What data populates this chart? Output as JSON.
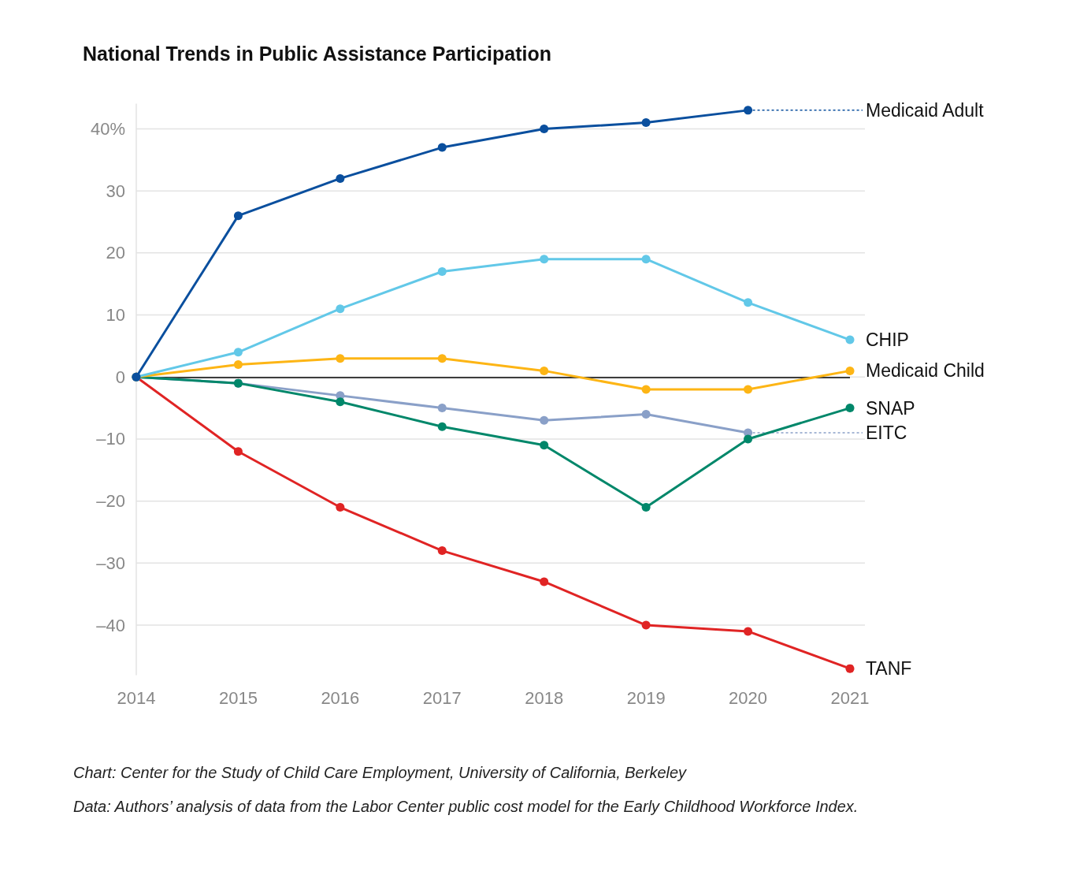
{
  "chart_data": {
    "type": "line",
    "title": "National Trends in Public Assistance Participation",
    "categories": [
      "2014",
      "2015",
      "2016",
      "2017",
      "2018",
      "2019",
      "2020",
      "2021"
    ],
    "series": [
      {
        "name": "Medicaid Adult",
        "color": "#0a4f9e",
        "values": [
          0,
          26,
          32,
          37,
          40,
          41,
          43,
          null
        ]
      },
      {
        "name": "CHIP",
        "color": "#62c8e8",
        "values": [
          0,
          4,
          11,
          17,
          19,
          19,
          12,
          6
        ]
      },
      {
        "name": "Medicaid Child",
        "color": "#fdb515",
        "values": [
          0,
          2,
          3,
          3,
          1,
          -2,
          -2,
          1
        ]
      },
      {
        "name": "SNAP",
        "color": "#00876a",
        "values": [
          0,
          -1,
          -4,
          -8,
          -11,
          -21,
          -10,
          -5
        ]
      },
      {
        "name": "EITC",
        "color": "#8aa0c8",
        "values": [
          0,
          -1,
          -3,
          -5,
          -7,
          -6,
          -9,
          null
        ]
      },
      {
        "name": "TANF",
        "color": "#e02424",
        "values": [
          0,
          -12,
          -21,
          -28,
          -33,
          -40,
          -41,
          -47
        ]
      }
    ],
    "ylim": [
      -48,
      44
    ],
    "yticks": [
      {
        "value": -40,
        "label": "–40"
      },
      {
        "value": -30,
        "label": "–30"
      },
      {
        "value": -20,
        "label": "–20"
      },
      {
        "value": -10,
        "label": "–10"
      },
      0,
      10,
      20,
      30,
      {
        "value": 40,
        "label": "40%"
      }
    ],
    "grid": "y",
    "marker": "circle",
    "line_style": "solid",
    "legend": false,
    "ref_lines": [
      {
        "axis": "y",
        "value": 0,
        "color": "#000000"
      }
    ],
    "annotations": [
      "Chart: Center for the Study of Child Care Employment, University of California, Berkeley",
      "Data: Authors’ analysis of data from the Labor Center public cost model for the Early Childhood Workforce Index."
    ]
  }
}
